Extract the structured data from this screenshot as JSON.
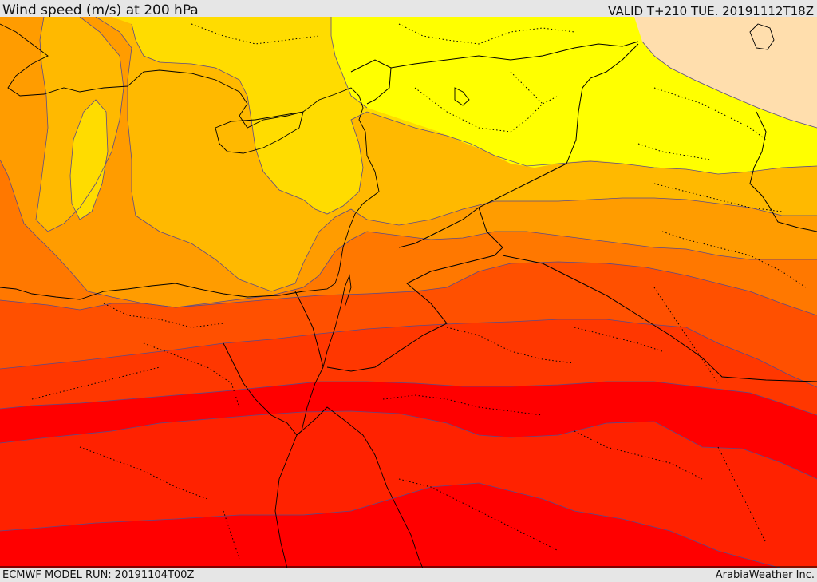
{
  "header": {
    "title": "Wind speed (m/s) at 200 hPa",
    "valid": "VALID T+210 TUE. 20191112T18Z"
  },
  "footer": {
    "model_run": "ECMWF MODEL RUN: 20191104T00Z",
    "credit": "ArabiaWeather Inc."
  },
  "map": {
    "colors": {
      "band_lightest": "#ffdead",
      "band_yellow": "#ffff00",
      "band_gold": "#ffdc00",
      "band_amber": "#ffb900",
      "band_orange": "#ff9c00",
      "band_dark_orange": "#ff7800",
      "band_red_orange": "#ff5000",
      "band_orange_red": "#ff3700",
      "band_red": "#ff2200",
      "band_deep_red": "#ff0000",
      "contour_line": "#5a4a8a",
      "borders": "#000000"
    }
  }
}
